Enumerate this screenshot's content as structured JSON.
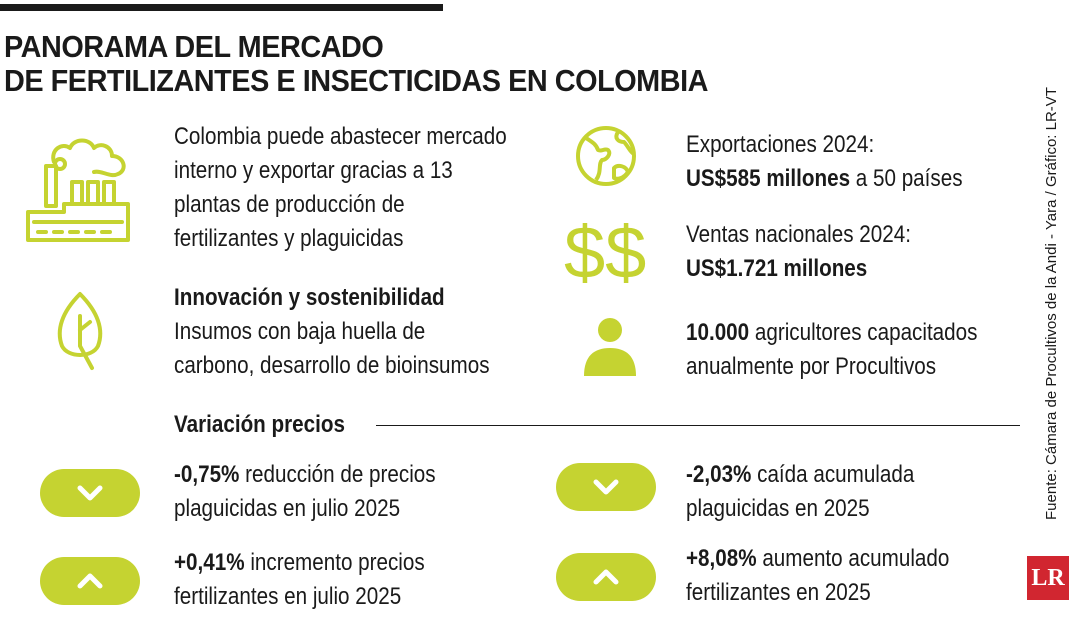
{
  "title": {
    "line1": "PANORAMA DEL MERCADO",
    "line2": "DE FERTILIZANTES E INSECTICIDAS EN COLOMBIA"
  },
  "accent_color": "#c5d331",
  "blocks": {
    "plants": {
      "icon": "factory-icon",
      "lines": [
        "Colombia puede abastecer mercado",
        "interno y exportar gracias a 13",
        "plantas de producción de",
        "fertilizantes y plaguicidas"
      ]
    },
    "exports": {
      "icon": "globe-icon",
      "line1": "Exportaciones 2024:",
      "value": "US$585 millones",
      "suffix": " a 50 países"
    },
    "sales": {
      "icon": "dollar-icon",
      "line1": "Ventas nacionales 2024:",
      "value": "US$1.721 millones"
    },
    "innovation": {
      "icon": "leaf-icon",
      "heading": "Innovación y sostenibilidad",
      "lines": [
        "Insumos con baja huella de",
        "carbono, desarrollo de bioinsumos"
      ]
    },
    "farmers": {
      "icon": "person-icon",
      "value": "10.000",
      "line1_rest": " agricultores capacitados",
      "line2": "anualmente por Procultivos"
    }
  },
  "prices": {
    "heading": "Variación precios",
    "items": [
      {
        "direction": "down",
        "value": "-0,75%",
        "line1_rest": " reducción de precios",
        "line2": "plaguicidas en julio 2025"
      },
      {
        "direction": "down",
        "value": "-2,03%",
        "line1_rest": " caída acumulada",
        "line2": "plaguicidas en 2025"
      },
      {
        "direction": "up",
        "value": "+0,41%",
        "line1_rest": " incremento precios",
        "line2": "fertilizantes en julio 2025"
      },
      {
        "direction": "up",
        "value": "+8,08%",
        "line1_rest": " aumento acumulado",
        "line2": "fertilizantes en 2025"
      }
    ]
  },
  "source": "Fuente: Cámara de Procultivos de la Andi - Yara / Gráfico: LR-VT",
  "logo": "LR"
}
